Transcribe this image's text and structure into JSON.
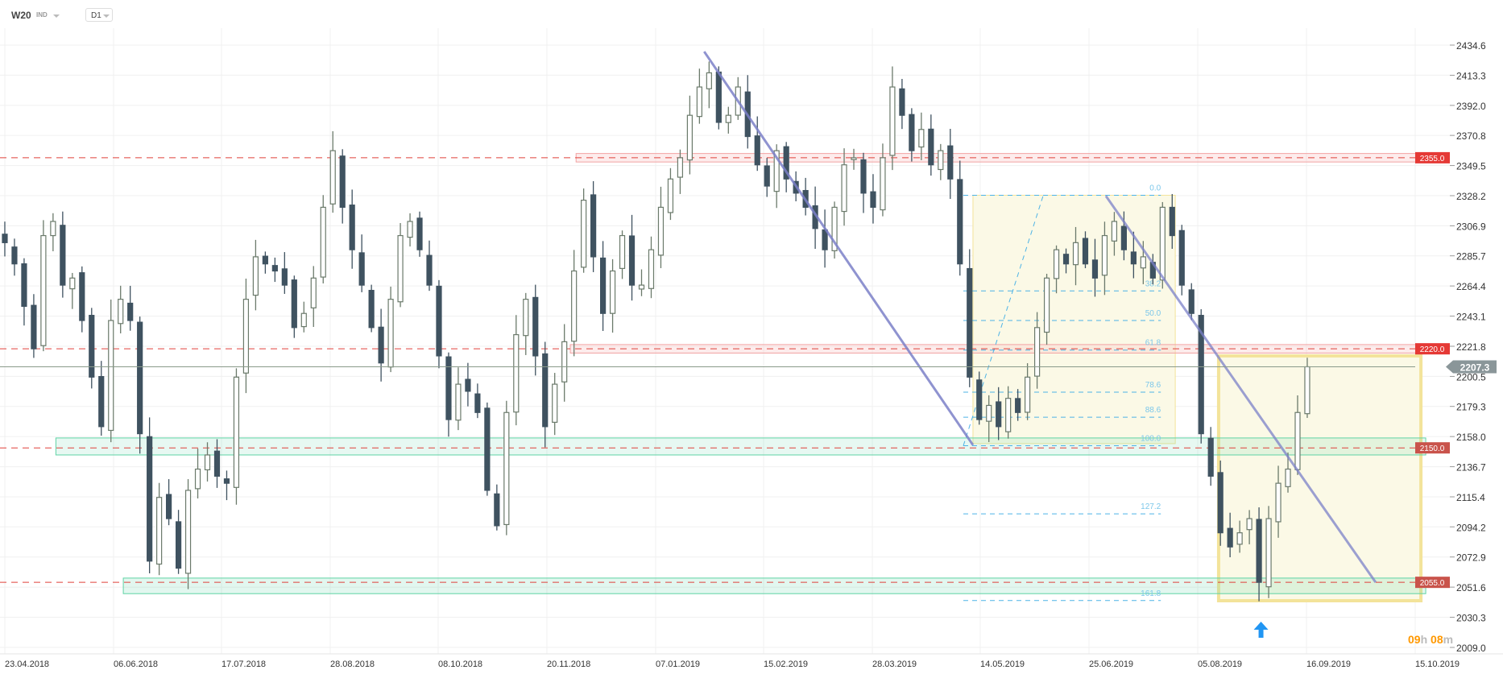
{
  "header": {
    "symbol": "W20",
    "market": "IND",
    "timeframe": "D1"
  },
  "timer": {
    "hours": "09",
    "h_unit": "h",
    "minutes": "08",
    "m_unit": "m"
  },
  "colors": {
    "bull": "#6b7a6b",
    "bear": "#3f5260",
    "level": "#e0403a",
    "zone_red": "#f8c9c9",
    "zone_green": "#5fd3a5",
    "fib": "#4db3e6",
    "trend": "#7b80c8",
    "box": "#f3e39a",
    "arrow": "#2196f3",
    "price_tag": "#8a9699"
  },
  "chart_data": {
    "type": "candlestick",
    "title": "W20 IND D1",
    "ylim": [
      2009.0,
      2434.6
    ],
    "y_ticks": [
      "2434.6",
      "2413.3",
      "2392.0",
      "2370.8",
      "2349.5",
      "2328.2",
      "2306.9",
      "2285.7",
      "2264.4",
      "2243.1",
      "2221.8",
      "2200.5",
      "2179.3",
      "2158.0",
      "2136.7",
      "2115.4",
      "2094.2",
      "2072.9",
      "2051.6",
      "2030.3",
      "2009.0"
    ],
    "x_ticks": [
      "23.04.2018",
      "06.06.2018",
      "17.07.2018",
      "28.08.2018",
      "08.10.2018",
      "20.11.2018",
      "07.01.2019",
      "15.02.2019",
      "28.03.2019",
      "14.05.2019",
      "25.06.2019",
      "05.08.2019",
      "16.09.2019",
      "15.10.2019"
    ],
    "closes": [
      2295,
      2280,
      2250,
      2220,
      2300,
      2310,
      2265,
      2270,
      2240,
      2200,
      2165,
      2240,
      2255,
      2240,
      2160,
      2070,
      2115,
      2100,
      2065,
      2120,
      2135,
      2145,
      2130,
      2125,
      2200,
      2255,
      2285,
      2280,
      2275,
      2265,
      2235,
      2245,
      2270,
      2320,
      2360,
      2320,
      2290,
      2265,
      2235,
      2210,
      2255,
      2300,
      2310,
      2290,
      2265,
      2215,
      2170,
      2195,
      2190,
      2175,
      2120,
      2095,
      2175,
      2230,
      2255,
      2215,
      2165,
      2195,
      2225,
      2275,
      2325,
      2285,
      2245,
      2275,
      2300,
      2265,
      2265,
      2290,
      2320,
      2340,
      2355,
      2385,
      2405,
      2415,
      2380,
      2385,
      2405,
      2370,
      2350,
      2335,
      2360,
      2340,
      2330,
      2320,
      2305,
      2290,
      2320,
      2350,
      2355,
      2330,
      2320,
      2355,
      2405,
      2385,
      2360,
      2375,
      2350,
      2360,
      2340,
      2280,
      2200,
      2170,
      2180,
      2165,
      2185,
      2175,
      2200,
      2235,
      2270,
      2290,
      2280,
      2295,
      2280,
      2270,
      2300,
      2310,
      2290,
      2280,
      2285,
      2270,
      2320,
      2300,
      2265,
      2245,
      2160,
      2130,
      2090,
      2080,
      2090,
      2100,
      2055,
      2100,
      2125,
      2135,
      2175,
      2207.3
    ],
    "current_price": "2207.3",
    "levels": [
      {
        "price": 2355.0,
        "label": "2355.0",
        "kind": "resistance"
      },
      {
        "price": 2220.0,
        "label": "2220.0",
        "kind": "resistance"
      },
      {
        "price": 2150.0,
        "label": "2150.0",
        "kind": "support"
      },
      {
        "price": 2055.0,
        "label": "2055.0",
        "kind": "support"
      }
    ],
    "fibonacci": {
      "high": 2328.5,
      "low": 2151.5,
      "levels": [
        {
          "ratio": 0.0,
          "label": "0.0"
        },
        {
          "ratio": 38.2,
          "label": "38.2"
        },
        {
          "ratio": 50.0,
          "label": "50.0"
        },
        {
          "ratio": 61.8,
          "label": "61.8"
        },
        {
          "ratio": 78.6,
          "label": "78.6"
        },
        {
          "ratio": 88.6,
          "label": "88.6"
        },
        {
          "ratio": 100.0,
          "label": "100.0"
        },
        {
          "ratio": 127.2,
          "label": "127.2"
        },
        {
          "ratio": 161.8,
          "label": "161.8"
        }
      ]
    },
    "trendlines": [
      {
        "from_price": 2430,
        "to_price": 2152
      },
      {
        "from_price": 2328,
        "to_price": 2055
      }
    ],
    "annotations": [
      "up-arrow at swing low"
    ]
  }
}
